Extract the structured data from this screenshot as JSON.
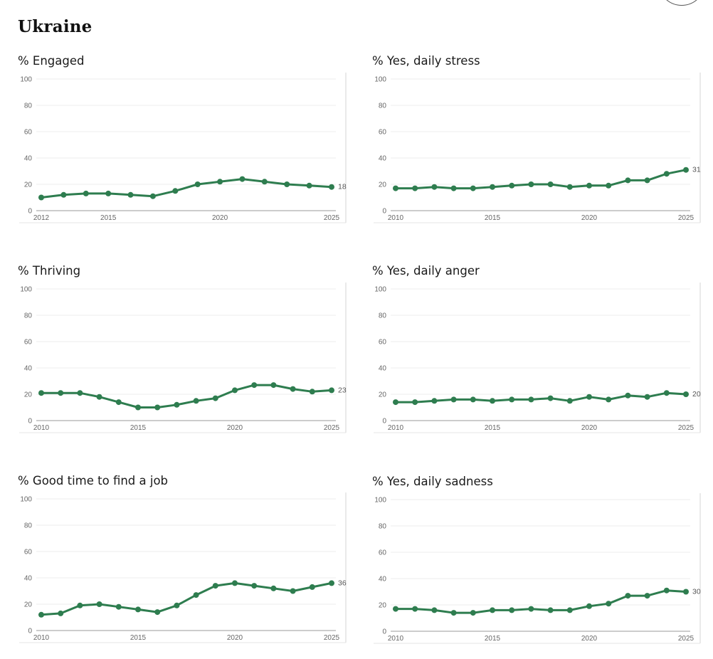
{
  "page": {
    "title": "Ukraine"
  },
  "chart_data": [
    {
      "type": "line",
      "title": "% Engaged",
      "x": [
        2012,
        2013,
        2014,
        2015,
        2016,
        2017,
        2018,
        2019,
        2020,
        2021,
        2022,
        2023,
        2024,
        2025
      ],
      "series": [
        {
          "name": "% Engaged",
          "values": [
            10,
            12,
            13,
            13,
            12,
            11,
            15,
            20,
            22,
            24,
            22,
            20,
            19,
            18
          ]
        }
      ],
      "xlim": [
        2012,
        2025
      ],
      "ylim": [
        0,
        100
      ],
      "xticks": [
        2012,
        2015,
        2020,
        2025
      ],
      "yticks": [
        0,
        20,
        40,
        60,
        80,
        100
      ],
      "last_label": "18",
      "color": "#2e7d4f",
      "grid": true
    },
    {
      "type": "line",
      "title": "% Yes, daily stress",
      "x": [
        2010,
        2011,
        2012,
        2013,
        2014,
        2015,
        2016,
        2017,
        2018,
        2019,
        2020,
        2021,
        2022,
        2023,
        2024,
        2025
      ],
      "series": [
        {
          "name": "% Yes, daily stress",
          "values": [
            17,
            17,
            18,
            17,
            17,
            18,
            19,
            20,
            20,
            18,
            19,
            19,
            23,
            23,
            28,
            31
          ]
        }
      ],
      "xlim": [
        2010,
        2025
      ],
      "ylim": [
        0,
        100
      ],
      "xticks": [
        2010,
        2015,
        2020,
        2025
      ],
      "yticks": [
        0,
        20,
        40,
        60,
        80,
        100
      ],
      "last_label": "31",
      "color": "#2e7d4f",
      "grid": true
    },
    {
      "type": "line",
      "title": "% Thriving",
      "x": [
        2010,
        2011,
        2012,
        2013,
        2014,
        2015,
        2016,
        2017,
        2018,
        2019,
        2020,
        2021,
        2022,
        2023,
        2024,
        2025
      ],
      "series": [
        {
          "name": "% Thriving",
          "values": [
            21,
            21,
            21,
            18,
            14,
            10,
            10,
            12,
            15,
            17,
            23,
            27,
            27,
            24,
            22,
            23
          ]
        }
      ],
      "xlim": [
        2010,
        2025
      ],
      "ylim": [
        0,
        100
      ],
      "xticks": [
        2010,
        2015,
        2020,
        2025
      ],
      "yticks": [
        0,
        20,
        40,
        60,
        80,
        100
      ],
      "last_label": "23",
      "color": "#2e7d4f",
      "grid": true
    },
    {
      "type": "line",
      "title": "% Yes, daily anger",
      "x": [
        2010,
        2011,
        2012,
        2013,
        2014,
        2015,
        2016,
        2017,
        2018,
        2019,
        2020,
        2021,
        2022,
        2023,
        2024,
        2025
      ],
      "series": [
        {
          "name": "% Yes, daily anger",
          "values": [
            14,
            14,
            15,
            16,
            16,
            15,
            16,
            16,
            17,
            15,
            18,
            16,
            19,
            18,
            21,
            20
          ]
        }
      ],
      "xlim": [
        2010,
        2025
      ],
      "ylim": [
        0,
        100
      ],
      "xticks": [
        2010,
        2015,
        2020,
        2025
      ],
      "yticks": [
        0,
        20,
        40,
        60,
        80,
        100
      ],
      "last_label": "20",
      "color": "#2e7d4f",
      "grid": true
    },
    {
      "type": "line",
      "title": "% Good time to find a job",
      "x": [
        2010,
        2011,
        2012,
        2013,
        2014,
        2015,
        2016,
        2017,
        2018,
        2019,
        2020,
        2021,
        2022,
        2023,
        2024,
        2025
      ],
      "series": [
        {
          "name": "% Good time to find a job",
          "values": [
            12,
            13,
            19,
            20,
            18,
            16,
            14,
            19,
            27,
            34,
            36,
            34,
            32,
            30,
            33,
            36
          ]
        }
      ],
      "xlim": [
        2010,
        2025
      ],
      "ylim": [
        0,
        100
      ],
      "xticks": [
        2010,
        2015,
        2020,
        2025
      ],
      "yticks": [
        0,
        20,
        40,
        60,
        80,
        100
      ],
      "last_label": "36",
      "color": "#2e7d4f",
      "grid": true
    },
    {
      "type": "line",
      "title": "% Yes, daily sadness",
      "x": [
        2010,
        2011,
        2012,
        2013,
        2014,
        2015,
        2016,
        2017,
        2018,
        2019,
        2020,
        2021,
        2022,
        2023,
        2024,
        2025
      ],
      "series": [
        {
          "name": "% Yes, daily sadness",
          "values": [
            17,
            17,
            16,
            14,
            14,
            16,
            16,
            17,
            16,
            16,
            19,
            21,
            27,
            27,
            31,
            30
          ]
        }
      ],
      "xlim": [
        2010,
        2025
      ],
      "ylim": [
        0,
        100
      ],
      "xticks": [
        2010,
        2015,
        2020,
        2025
      ],
      "yticks": [
        0,
        20,
        40,
        60,
        80,
        100
      ],
      "last_label": "30",
      "color": "#2e7d4f",
      "grid": true
    }
  ]
}
